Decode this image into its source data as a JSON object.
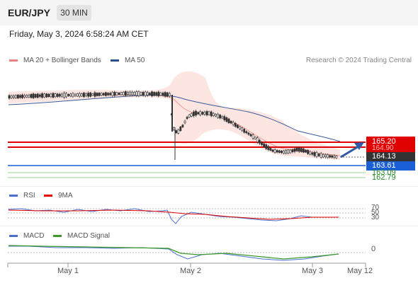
{
  "header": {
    "symbol": "EUR/JPY",
    "timeframe_button": "30 MIN"
  },
  "datetime": "Friday, May 3, 2024 6:58:24 AM CET",
  "main_legend": {
    "items": [
      {
        "label": "MA 20 + Bollinger Bands",
        "color": "#f08080"
      },
      {
        "label": "MA 50",
        "color": "#2a4f8f"
      }
    ],
    "credit": "Research © 2024 Trading Central"
  },
  "price_levels": {
    "resistance": "165.20",
    "resistance_hidden": "164.90",
    "current": "164.13",
    "pivot": "163.61",
    "support1": "163.09",
    "support2": "162.79"
  },
  "rsi_legend": {
    "items": [
      {
        "label": "RSI",
        "color": "#4a6fd0"
      },
      {
        "label": "9MA",
        "color": "#e00000"
      }
    ],
    "levels": [
      "70",
      "50",
      "30"
    ]
  },
  "macd_legend": {
    "items": [
      {
        "label": "MACD",
        "color": "#4a6fd0"
      },
      {
        "label": "MACD Signal",
        "color": "#3c9a2a"
      }
    ],
    "zero_label": "0"
  },
  "x_axis": {
    "labels": [
      "May 1",
      "May 2",
      "May 3",
      "May 12"
    ]
  },
  "colors": {
    "resistance": "#e00000",
    "pivot": "#1a5fd6",
    "support": "#3ca43c",
    "candle": "#333333",
    "bollinger_fill": "#fde0dc",
    "ma50": "#3a5a9a",
    "arrow": "#2e5aa8"
  }
}
